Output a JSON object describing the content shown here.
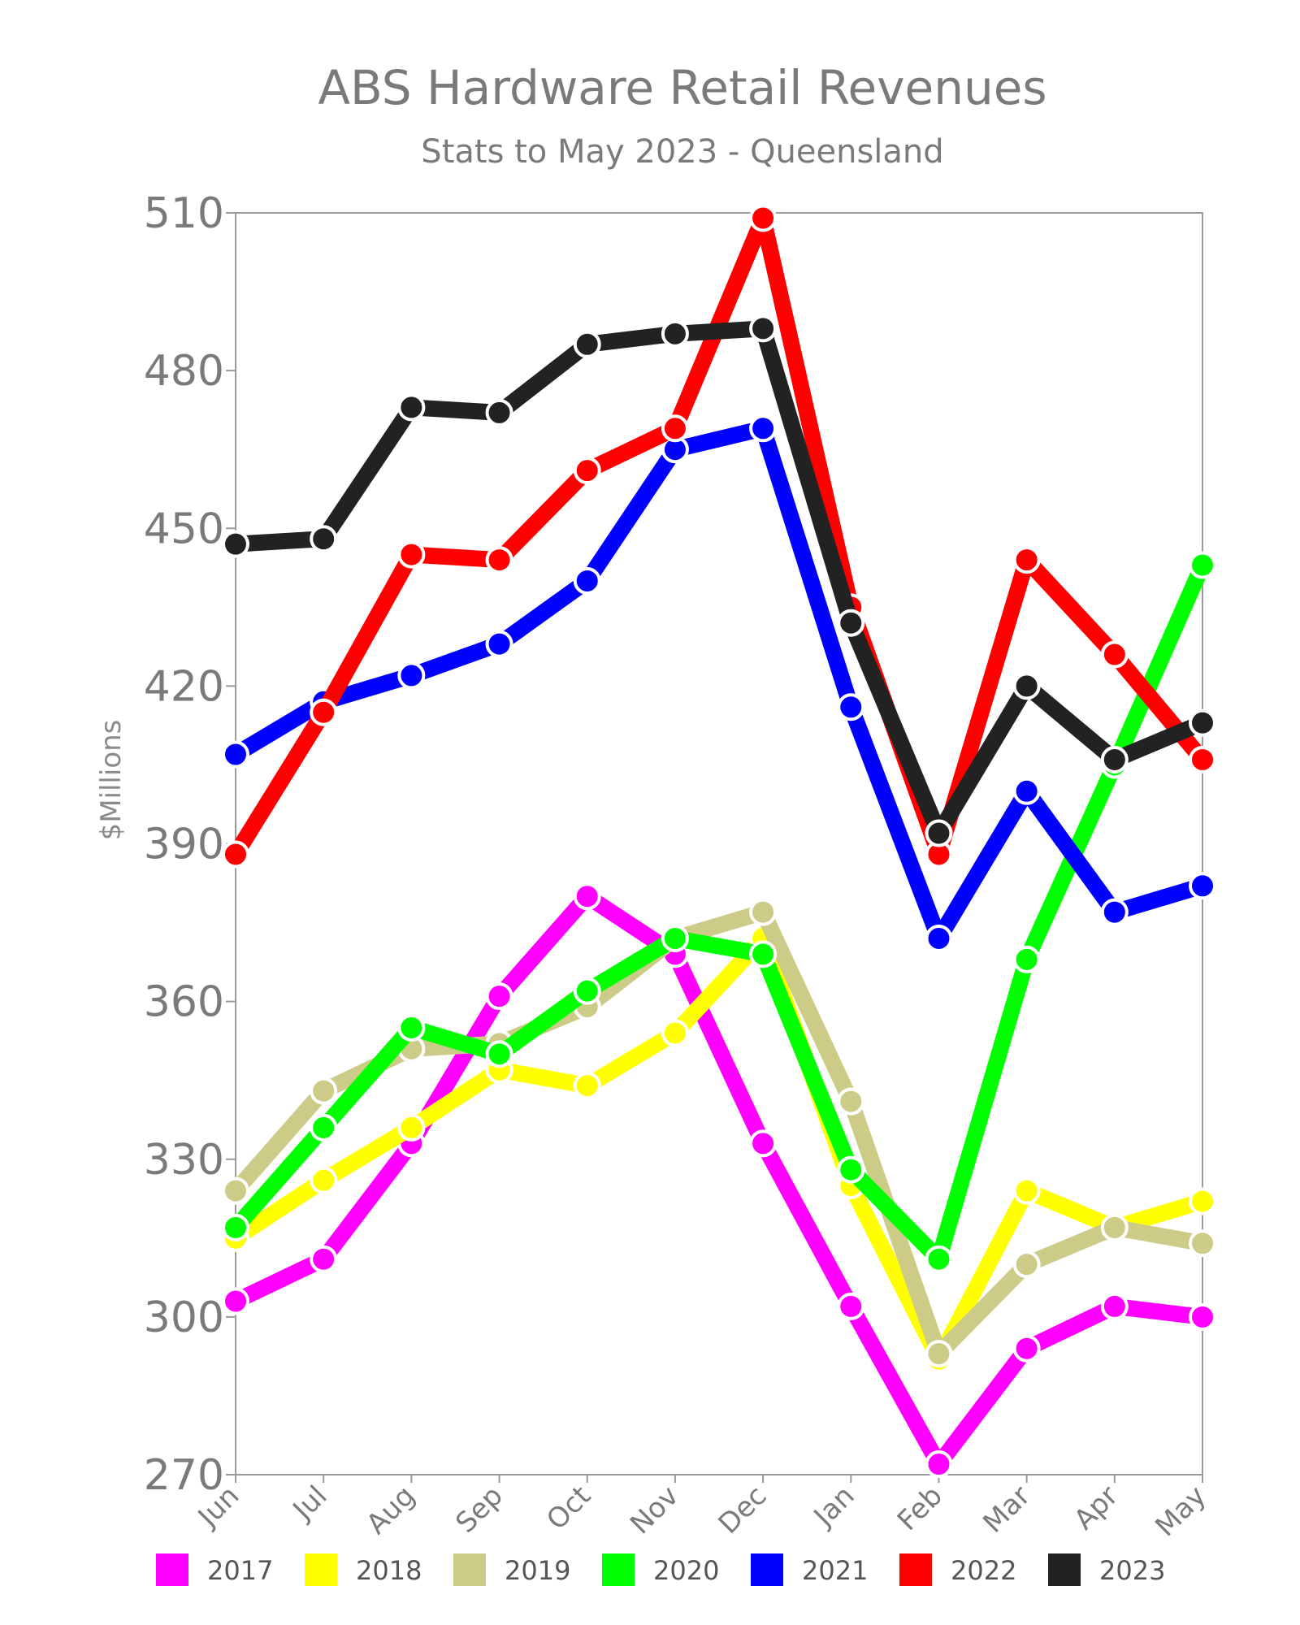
{
  "chart_data": {
    "type": "line",
    "title": "ABS Hardware Retail Revenues",
    "subtitle": "Stats to May 2023 - Queensland",
    "ylabel": "$Millions",
    "xlabel": "",
    "categories": [
      "Jun",
      "Jul",
      "Aug",
      "Sep",
      "Oct",
      "Nov",
      "Dec",
      "Jan",
      "Feb",
      "Mar",
      "Apr",
      "May"
    ],
    "ylim": [
      270,
      510
    ],
    "yticks": [
      "270",
      "300",
      "330",
      "360",
      "390",
      "420",
      "450",
      "480",
      "510"
    ],
    "legend_position": "bottom",
    "grid": false,
    "series": [
      {
        "name": "2017",
        "color": "#ff00ff",
        "values": [
          303,
          311,
          333,
          361,
          380,
          369,
          333,
          302,
          272,
          294,
          302,
          300
        ]
      },
      {
        "name": "2018",
        "color": "#ffff00",
        "values": [
          315,
          326,
          336,
          347,
          344,
          354,
          372,
          325,
          292,
          324,
          317,
          322
        ]
      },
      {
        "name": "2019",
        "color": "#cccc88",
        "values": [
          324,
          343,
          351,
          352,
          359,
          372,
          377,
          341,
          293,
          310,
          317,
          314
        ]
      },
      {
        "name": "2020",
        "color": "#00ff00",
        "values": [
          317,
          336,
          355,
          350,
          362,
          372,
          369,
          328,
          311,
          368,
          405,
          443
        ]
      },
      {
        "name": "2021",
        "color": "#0000ff",
        "values": [
          407,
          417,
          422,
          428,
          440,
          465,
          469,
          416,
          372,
          400,
          377,
          382
        ]
      },
      {
        "name": "2022",
        "color": "#ff0000",
        "values": [
          388,
          415,
          445,
          444,
          461,
          469,
          509,
          435,
          388,
          444,
          426,
          406
        ]
      },
      {
        "name": "2023",
        "color": "#222222",
        "values": [
          447,
          448,
          473,
          472,
          485,
          487,
          488,
          432,
          392,
          420,
          406,
          413
        ]
      }
    ]
  }
}
